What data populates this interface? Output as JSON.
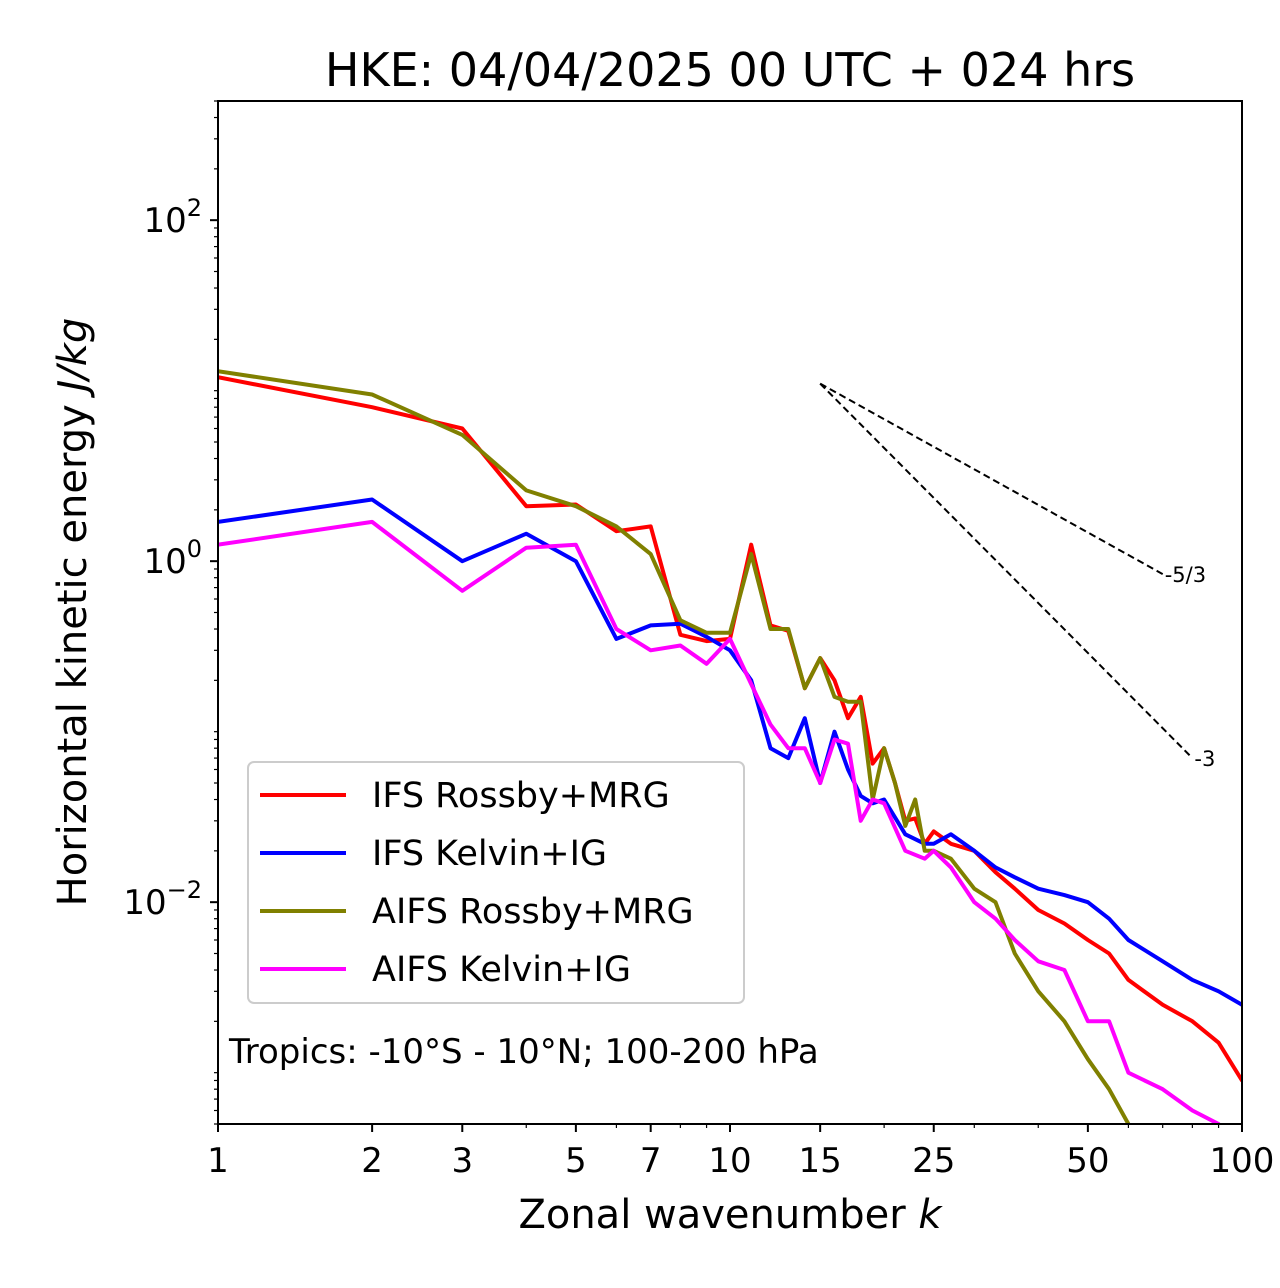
{
  "chart_data": {
    "type": "line",
    "title": "HKE: 04/04/2025 00 UTC + 024 hrs",
    "xlabel": "Zonal wavenumber",
    "xlabel_var": "k",
    "ylabel": "Horizontal kinetic energy",
    "ylabel_units": "J/kg",
    "x_scale": "log",
    "y_scale": "log",
    "xlim": [
      1,
      100
    ],
    "ylim": [
      0.0005,
      500
    ],
    "x_ticks": [
      {
        "value": 1,
        "label": "1"
      },
      {
        "value": 2,
        "label": "2"
      },
      {
        "value": 3,
        "label": "3"
      },
      {
        "value": 5,
        "label": "5"
      },
      {
        "value": 7,
        "label": "7"
      },
      {
        "value": 10,
        "label": "10"
      },
      {
        "value": 15,
        "label": "15"
      },
      {
        "value": 25,
        "label": "25"
      },
      {
        "value": 50,
        "label": "50"
      },
      {
        "value": 100,
        "label": "100"
      }
    ],
    "y_ticks": [
      {
        "value": 0.01,
        "base": "10",
        "exp": "−2"
      },
      {
        "value": 1,
        "base": "10",
        "exp": "0"
      },
      {
        "value": 100,
        "base": "10",
        "exp": "2"
      }
    ],
    "grid": false,
    "legend_position": "lower-left",
    "annotation": "Tropics: -10°S - 10°N; 100-200 hPa",
    "reference_slopes": [
      {
        "label": "-5/3",
        "x": [
          15,
          70
        ],
        "y": [
          11,
          0.84
        ]
      },
      {
        "label": "-3",
        "x": [
          15,
          80
        ],
        "y": [
          11,
          0.07
        ]
      }
    ],
    "series": [
      {
        "name": "IFS Rossby+MRG",
        "color": "#ff0000",
        "points": [
          [
            1,
            12
          ],
          [
            2,
            8
          ],
          [
            3,
            6
          ],
          [
            4,
            2.1
          ],
          [
            5,
            2.15
          ],
          [
            6,
            1.5
          ],
          [
            7,
            1.6
          ],
          [
            8,
            0.37
          ],
          [
            9,
            0.34
          ],
          [
            10,
            0.35
          ],
          [
            11,
            1.25
          ],
          [
            12,
            0.42
          ],
          [
            13,
            0.39
          ],
          [
            14,
            0.18
          ],
          [
            15,
            0.27
          ],
          [
            16,
            0.2
          ],
          [
            17,
            0.12
          ],
          [
            18,
            0.16
          ],
          [
            19,
            0.065
          ],
          [
            20,
            0.08
          ],
          [
            21,
            0.05
          ],
          [
            22,
            0.03
          ],
          [
            23,
            0.031
          ],
          [
            24,
            0.022
          ],
          [
            25,
            0.026
          ],
          [
            27,
            0.022
          ],
          [
            30,
            0.02
          ],
          [
            33,
            0.015
          ],
          [
            36,
            0.012
          ],
          [
            40,
            0.009
          ],
          [
            45,
            0.0075
          ],
          [
            50,
            0.006
          ],
          [
            55,
            0.005
          ],
          [
            60,
            0.0035
          ],
          [
            70,
            0.0025
          ],
          [
            80,
            0.002
          ],
          [
            90,
            0.0015
          ],
          [
            100,
            0.0009
          ]
        ]
      },
      {
        "name": "IFS Kelvin+IG",
        "color": "#0000ff",
        "points": [
          [
            1,
            1.7
          ],
          [
            2,
            2.3
          ],
          [
            3,
            1
          ],
          [
            4,
            1.45
          ],
          [
            5,
            1
          ],
          [
            6,
            0.35
          ],
          [
            7,
            0.42
          ],
          [
            8,
            0.43
          ],
          [
            9,
            0.36
          ],
          [
            10,
            0.3
          ],
          [
            11,
            0.2
          ],
          [
            12,
            0.08
          ],
          [
            13,
            0.07
          ],
          [
            14,
            0.12
          ],
          [
            15,
            0.05
          ],
          [
            16,
            0.1
          ],
          [
            17,
            0.06
          ],
          [
            18,
            0.042
          ],
          [
            19,
            0.038
          ],
          [
            20,
            0.04
          ],
          [
            22,
            0.025
          ],
          [
            24,
            0.022
          ],
          [
            25,
            0.022
          ],
          [
            27,
            0.025
          ],
          [
            30,
            0.02
          ],
          [
            33,
            0.016
          ],
          [
            36,
            0.014
          ],
          [
            40,
            0.012
          ],
          [
            45,
            0.011
          ],
          [
            50,
            0.01
          ],
          [
            55,
            0.008
          ],
          [
            60,
            0.006
          ],
          [
            70,
            0.0045
          ],
          [
            80,
            0.0035
          ],
          [
            90,
            0.003
          ],
          [
            100,
            0.0025
          ]
        ]
      },
      {
        "name": "AIFS Rossby+MRG",
        "color": "#808000",
        "points": [
          [
            1,
            13
          ],
          [
            2,
            9.5
          ],
          [
            3,
            5.5
          ],
          [
            4,
            2.6
          ],
          [
            5,
            2.1
          ],
          [
            6,
            1.6
          ],
          [
            7,
            1.1
          ],
          [
            8,
            0.45
          ],
          [
            9,
            0.38
          ],
          [
            10,
            0.38
          ],
          [
            11,
            1.1
          ],
          [
            12,
            0.4
          ],
          [
            13,
            0.4
          ],
          [
            14,
            0.18
          ],
          [
            15,
            0.27
          ],
          [
            16,
            0.16
          ],
          [
            17,
            0.15
          ],
          [
            18,
            0.15
          ],
          [
            19,
            0.04
          ],
          [
            20,
            0.08
          ],
          [
            21,
            0.05
          ],
          [
            22,
            0.028
          ],
          [
            23,
            0.04
          ],
          [
            24,
            0.02
          ],
          [
            25,
            0.02
          ],
          [
            27,
            0.018
          ],
          [
            30,
            0.012
          ],
          [
            33,
            0.01
          ],
          [
            36,
            0.005
          ],
          [
            40,
            0.003
          ],
          [
            45,
            0.002
          ],
          [
            50,
            0.0012
          ],
          [
            55,
            0.0008
          ],
          [
            60,
            0.0005
          ]
        ]
      },
      {
        "name": "AIFS Kelvin+IG",
        "color": "#ff00ff",
        "points": [
          [
            1,
            1.25
          ],
          [
            2,
            1.7
          ],
          [
            3,
            0.67
          ],
          [
            4,
            1.2
          ],
          [
            5,
            1.25
          ],
          [
            6,
            0.4
          ],
          [
            7,
            0.3
          ],
          [
            8,
            0.32
          ],
          [
            9,
            0.25
          ],
          [
            10,
            0.35
          ],
          [
            11,
            0.19
          ],
          [
            12,
            0.11
          ],
          [
            13,
            0.08
          ],
          [
            14,
            0.08
          ],
          [
            15,
            0.05
          ],
          [
            16,
            0.09
          ],
          [
            17,
            0.085
          ],
          [
            18,
            0.03
          ],
          [
            19,
            0.04
          ],
          [
            20,
            0.038
          ],
          [
            22,
            0.02
          ],
          [
            24,
            0.018
          ],
          [
            25,
            0.02
          ],
          [
            27,
            0.016
          ],
          [
            30,
            0.01
          ],
          [
            33,
            0.008
          ],
          [
            36,
            0.006
          ],
          [
            40,
            0.0045
          ],
          [
            45,
            0.004
          ],
          [
            50,
            0.002
          ],
          [
            55,
            0.002
          ],
          [
            60,
            0.001
          ],
          [
            70,
            0.0008
          ],
          [
            80,
            0.0006
          ],
          [
            90,
            0.0005
          ]
        ]
      }
    ]
  }
}
